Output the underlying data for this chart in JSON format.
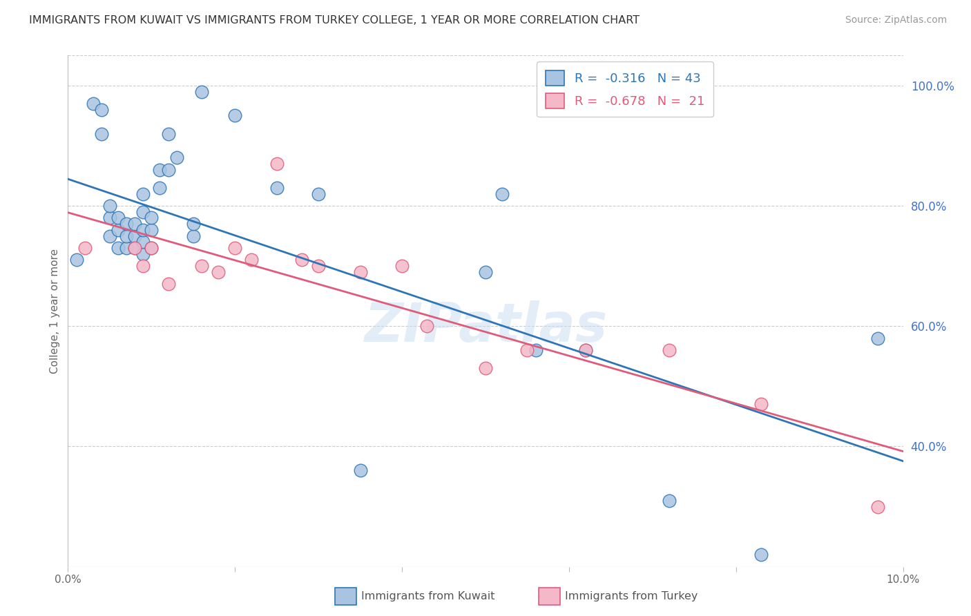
{
  "title": "IMMIGRANTS FROM KUWAIT VS IMMIGRANTS FROM TURKEY COLLEGE, 1 YEAR OR MORE CORRELATION CHART",
  "source": "Source: ZipAtlas.com",
  "ylabel": "College, 1 year or more",
  "x_min": 0.0,
  "x_max": 0.1,
  "y_min": 0.2,
  "y_max": 1.05,
  "x_ticks": [
    0.0,
    0.02,
    0.04,
    0.06,
    0.08,
    0.1
  ],
  "x_tick_labels": [
    "0.0%",
    "",
    "",
    "",
    "",
    "10.0%"
  ],
  "y_ticks_right": [
    0.4,
    0.6,
    0.8,
    1.0
  ],
  "y_tick_labels_right": [
    "40.0%",
    "60.0%",
    "80.0%",
    "100.0%"
  ],
  "kuwait_R": "-0.316",
  "kuwait_N": "43",
  "turkey_R": "-0.678",
  "turkey_N": "21",
  "kuwait_color": "#a8c4e0",
  "kuwait_line_color": "#2e75b6",
  "turkey_color": "#f4b8c8",
  "turkey_line_color": "#e05a7a",
  "watermark": "ZIPatlas",
  "kuwait_x": [
    0.001,
    0.003,
    0.004,
    0.005,
    0.005,
    0.005,
    0.006,
    0.006,
    0.006,
    0.007,
    0.007,
    0.007,
    0.008,
    0.008,
    0.008,
    0.009,
    0.009,
    0.009,
    0.009,
    0.009,
    0.01,
    0.01,
    0.01,
    0.011,
    0.011,
    0.012,
    0.012,
    0.013,
    0.015,
    0.015,
    0.016,
    0.02,
    0.025,
    0.03,
    0.035,
    0.05,
    0.052,
    0.056,
    0.062,
    0.072,
    0.083,
    0.097,
    0.004
  ],
  "kuwait_y": [
    0.71,
    0.97,
    0.92,
    0.75,
    0.78,
    0.8,
    0.73,
    0.76,
    0.78,
    0.73,
    0.75,
    0.77,
    0.73,
    0.75,
    0.77,
    0.72,
    0.74,
    0.76,
    0.79,
    0.82,
    0.73,
    0.76,
    0.78,
    0.83,
    0.86,
    0.86,
    0.92,
    0.88,
    0.75,
    0.77,
    0.99,
    0.95,
    0.83,
    0.82,
    0.36,
    0.69,
    0.82,
    0.56,
    0.56,
    0.31,
    0.22,
    0.58,
    0.96
  ],
  "turkey_x": [
    0.002,
    0.008,
    0.009,
    0.01,
    0.012,
    0.016,
    0.018,
    0.02,
    0.022,
    0.025,
    0.028,
    0.03,
    0.035,
    0.04,
    0.043,
    0.05,
    0.055,
    0.062,
    0.072,
    0.083,
    0.097
  ],
  "turkey_y": [
    0.73,
    0.73,
    0.7,
    0.73,
    0.67,
    0.7,
    0.69,
    0.73,
    0.71,
    0.87,
    0.71,
    0.7,
    0.69,
    0.7,
    0.6,
    0.53,
    0.56,
    0.56,
    0.56,
    0.47,
    0.3
  ],
  "grid_color": "#cccccc",
  "background_color": "#ffffff"
}
